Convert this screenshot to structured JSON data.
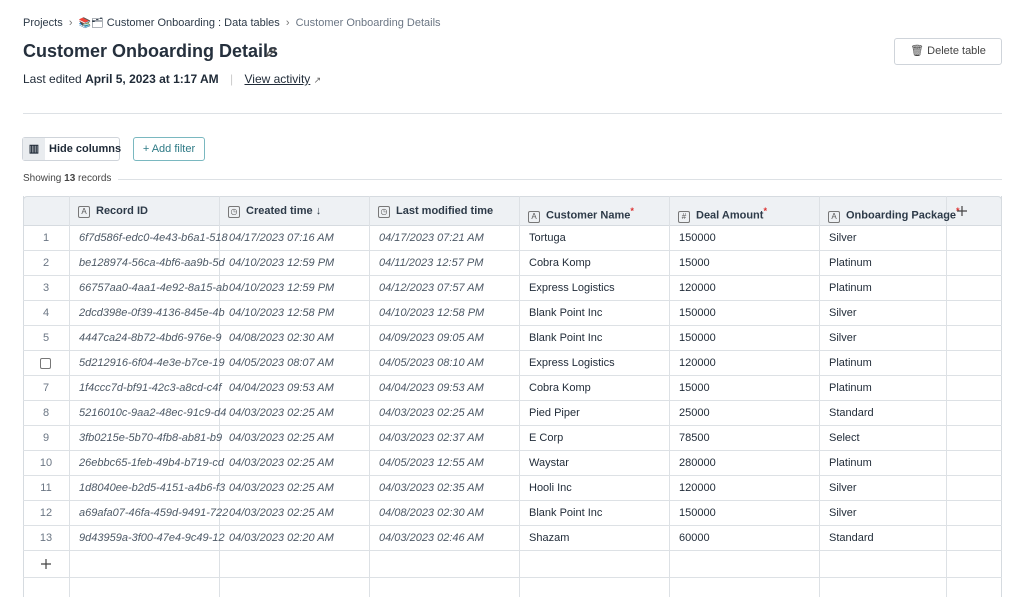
{
  "breadcrumb": {
    "root": "Projects",
    "parent": "Customer Onboarding : Data tables",
    "current": "Customer Onboarding Details"
  },
  "header": {
    "title": "Customer Onboarding Details",
    "edited_prefix": "Last edited",
    "edited_time": "April 5, 2023 at 1:17 AM",
    "activity_link": "View activity",
    "delete_button": "Delete table"
  },
  "toolbar": {
    "hide_columns": "Hide columns",
    "add_filter": "Add filter"
  },
  "summary": {
    "prefix": "Showing",
    "count": "13",
    "suffix": "records"
  },
  "table": {
    "columns": [
      {
        "label": "Record ID"
      },
      {
        "label": "Created time"
      },
      {
        "label": "Last modified time"
      },
      {
        "label": "Customer Name",
        "required": "*"
      },
      {
        "label": "Deal Amount",
        "required": "*"
      },
      {
        "label": "Onboarding Package",
        "required": "*"
      }
    ],
    "rows": [
      {
        "number": "1",
        "cells": [
          "6f7d586f-edc0-4e43-b6a1-518",
          "04/17/2023 07:16 AM",
          "04/17/2023 07:21 AM",
          "Tortuga",
          "150000",
          "Silver"
        ]
      },
      {
        "number": "2",
        "cells": [
          "be128974-56ca-4bf6-aa9b-5d",
          "04/10/2023 12:59 PM",
          "04/11/2023 12:57 PM",
          "Cobra Komp",
          "15000",
          "Platinum"
        ]
      },
      {
        "number": "3",
        "cells": [
          "66757aa0-4aa1-4e92-8a15-ab",
          "04/10/2023 12:59 PM",
          "04/12/2023 07:57 AM",
          "Express Logistics",
          "120000",
          "Platinum"
        ]
      },
      {
        "number": "4",
        "cells": [
          "2dcd398e-0f39-4136-845e-4b",
          "04/10/2023 12:58 PM",
          "04/10/2023 12:58 PM",
          "Blank Point Inc",
          "150000",
          "Silver"
        ]
      },
      {
        "number": "5",
        "cells": [
          "4447ca24-8b72-4bd6-976e-9",
          "04/08/2023 02:30 AM",
          "04/09/2023 09:05 AM",
          "Blank Point Inc",
          "150000",
          "Silver"
        ]
      },
      {
        "number": null,
        "cells": [
          "5d212916-6f04-4e3e-b7ce-19",
          "04/05/2023 08:07 AM",
          "04/05/2023 08:10 AM",
          "Express Logistics",
          "120000",
          "Platinum"
        ]
      },
      {
        "number": "7",
        "cells": [
          "1f4ccc7d-bf91-42c3-a8cd-c4f",
          "04/04/2023 09:53 AM",
          "04/04/2023 09:53 AM",
          "Cobra Komp",
          "15000",
          "Platinum"
        ]
      },
      {
        "number": "8",
        "cells": [
          "5216010c-9aa2-48ec-91c9-d4",
          "04/03/2023 02:25 AM",
          "04/03/2023 02:25 AM",
          "Pied Piper",
          "25000",
          "Standard"
        ]
      },
      {
        "number": "9",
        "cells": [
          "3fb0215e-5b70-4fb8-ab81-b9",
          "04/03/2023 02:25 AM",
          "04/03/2023 02:37 AM",
          "E Corp",
          "78500",
          "Select"
        ]
      },
      {
        "number": "10",
        "cells": [
          "26ebbc65-1feb-49b4-b719-cd",
          "04/03/2023 02:25 AM",
          "04/05/2023 12:55 AM",
          "Waystar",
          "280000",
          "Platinum"
        ]
      },
      {
        "number": "11",
        "cells": [
          "1d8040ee-b2d5-4151-a4b6-f3",
          "04/03/2023 02:25 AM",
          "04/03/2023 02:35 AM",
          "Hooli Inc",
          "120000",
          "Silver"
        ]
      },
      {
        "number": "12",
        "cells": [
          "a69afa07-46fa-459d-9491-722",
          "04/03/2023 02:25 AM",
          "04/08/2023 02:30 AM",
          "Blank Point Inc",
          "150000",
          "Silver"
        ]
      },
      {
        "number": "13",
        "cells": [
          "9d43959a-3f00-47e4-9c49-12",
          "04/03/2023 02:20 AM",
          "04/03/2023 02:46 AM",
          "Shazam",
          "60000",
          "Standard"
        ]
      }
    ]
  }
}
